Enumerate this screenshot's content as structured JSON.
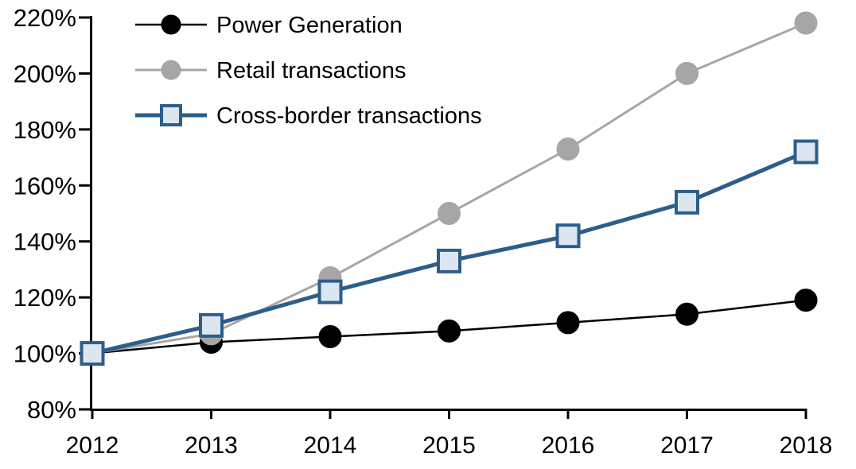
{
  "chart_data": {
    "type": "line",
    "title": "",
    "xlabel": "",
    "ylabel": "",
    "x_categories": [
      "2012",
      "2013",
      "2014",
      "2015",
      "2016",
      "2017",
      "2018"
    ],
    "series": [
      {
        "name": "Power Generation",
        "values": [
          100,
          104,
          106,
          108,
          111,
          114,
          119
        ],
        "color": "#000000",
        "marker": "circle",
        "marker_fill": "#000000",
        "marker_stroke": "#000000",
        "line_width": 2.5
      },
      {
        "name": "Retail transactions",
        "values": [
          100,
          107,
          127,
          150,
          173,
          200,
          218
        ],
        "color": "#A6A6A6",
        "marker": "circle",
        "marker_fill": "#A6A6A6",
        "marker_stroke": "#A6A6A6",
        "line_width": 3
      },
      {
        "name": "Cross-border transactions",
        "values": [
          100,
          110,
          122,
          133,
          142,
          154,
          172
        ],
        "color": "#2D5E8A",
        "marker": "square",
        "marker_fill": "#DCE6F1",
        "marker_stroke": "#2D5E8A",
        "line_width": 5
      }
    ],
    "ylim": [
      80,
      220
    ],
    "ytick_step": 20,
    "y_tick_labels": [
      "80%",
      "100%",
      "120%",
      "140%",
      "160%",
      "180%",
      "200%",
      "220%"
    ],
    "x_tick_labels": [
      "2012",
      "2013",
      "2014",
      "2015",
      "2016",
      "2017",
      "2018"
    ],
    "grid": false,
    "legend_position": "top-left",
    "axis_color": "#000000",
    "background_color": "#FFFFFF"
  }
}
